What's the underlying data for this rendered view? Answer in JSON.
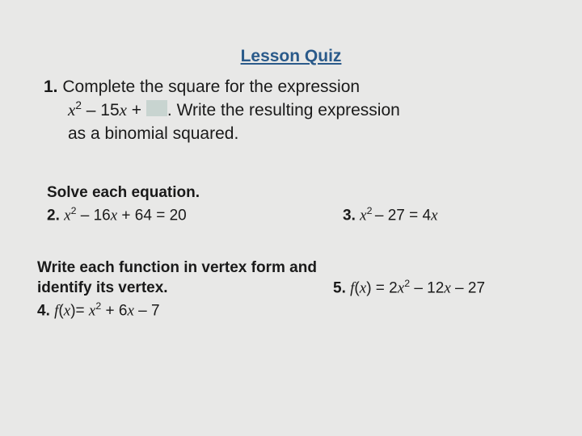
{
  "title": "Lesson Quiz",
  "q1": {
    "num": "1.",
    "line1_a": " Complete the square for the expression",
    "line2_a": "x",
    "line2_sup": "2",
    "line2_b": " – 15",
    "line2_x": "x",
    "line2_c": " + ",
    "line2_d": ". Write the resulting expression",
    "line3": "as a binomial squared."
  },
  "section1": "Solve each equation.",
  "q2": {
    "num": "2.",
    "a": " ",
    "x1": "x",
    "sup": "2",
    "b": " – 16",
    "x2": "x",
    "c": " + 64 = 20"
  },
  "q3": {
    "num": "3.",
    "a": " ",
    "x1": "x",
    "sup": "2 ",
    "b": "– 27 = 4",
    "x2": "x"
  },
  "section2a": "Write each function in vertex form and",
  "section2b": "identify its vertex.",
  "q4": {
    "num": "4.",
    "a": " ",
    "fx": "f",
    "paren1": "(",
    "x": "x",
    "paren2": ")= ",
    "x2": "x",
    "sup": "2",
    "b": " + 6",
    "x3": "x",
    "c": " – 7"
  },
  "q5": {
    "num": "5.",
    "a": " ",
    "fx": "f",
    "paren1": "(",
    "x": "x",
    "paren2": ") = 2",
    "x2": "x",
    "sup": "2",
    "b": " – 12",
    "x3": "x",
    "c": " – 27"
  }
}
